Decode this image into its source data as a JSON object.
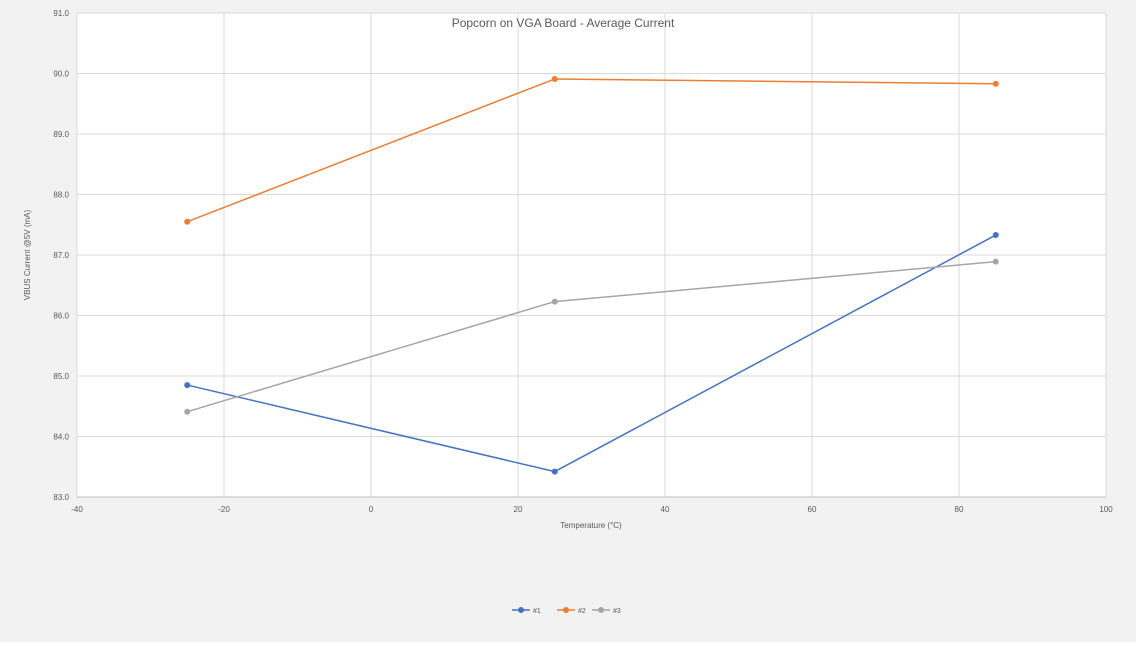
{
  "chart_data": {
    "type": "line",
    "title": "Popcorn on VGA Board - Average Current",
    "xlabel": "Temperature (°C)",
    "ylabel": "VBUS Current @5V (mA)",
    "xlim": [
      -40,
      100
    ],
    "ylim": [
      83.0,
      91.0
    ],
    "xticks": [
      "-40",
      "-20",
      "0",
      "20",
      "40",
      "60",
      "80",
      "100"
    ],
    "yticks": [
      "83.0",
      "84.0",
      "85.0",
      "86.0",
      "87.0",
      "88.0",
      "89.0",
      "90.0",
      "91.0"
    ],
    "grid": true,
    "legend_position": "bottom",
    "x": [
      -25,
      25,
      85
    ],
    "series": [
      {
        "name": "#1",
        "color": "#4472c4",
        "values": [
          84.85,
          83.42,
          87.33
        ]
      },
      {
        "name": "#2",
        "color": "#ed7d31",
        "values": [
          87.55,
          89.91,
          89.83
        ]
      },
      {
        "name": "#3",
        "color": "#a5a5a5",
        "values": [
          84.41,
          86.23,
          86.89
        ]
      }
    ]
  }
}
